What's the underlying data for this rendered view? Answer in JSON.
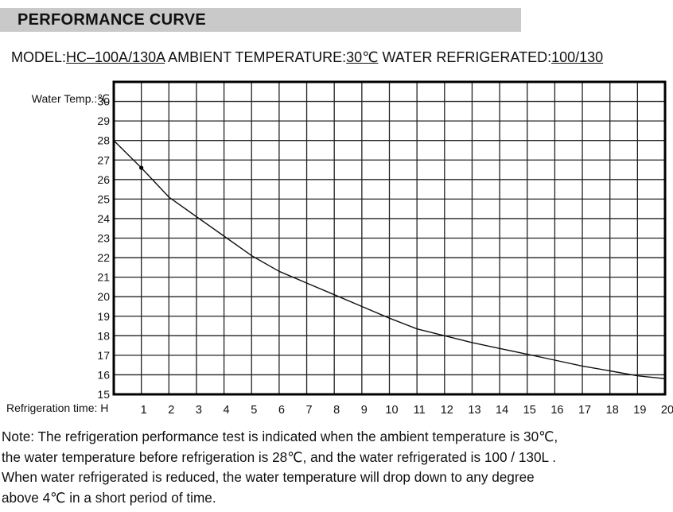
{
  "header": {
    "title": "PERFORMANCE CURVE"
  },
  "info": {
    "model_label": "MODEL:",
    "model_value": "HC–100A/130A",
    "ambient_label": "AMBIENT TEMPERATURE:",
    "ambient_value": "30℃",
    "water_label": "WATER REFRIGERATED:",
    "water_value": "100/130"
  },
  "chart_data": {
    "type": "line",
    "ylabel": "Water Temp.:℃",
    "xlabel": "Refrigeration time: H",
    "ylim": [
      15,
      31
    ],
    "xlim": [
      0,
      20
    ],
    "y_ticks": [
      30,
      29,
      28,
      27,
      26,
      25,
      24,
      23,
      22,
      21,
      20,
      19,
      18,
      17,
      16,
      15
    ],
    "x_ticks": [
      1,
      2,
      3,
      4,
      5,
      6,
      7,
      8,
      9,
      10,
      11,
      12,
      13,
      14,
      15,
      16,
      17,
      18,
      19,
      20
    ],
    "grid": true,
    "series": [
      {
        "name": "Water temperature",
        "x": [
          0,
          1,
          2,
          3,
          4,
          5,
          6,
          7,
          8,
          9,
          10,
          11,
          12,
          13,
          14,
          15,
          16,
          17,
          18,
          19,
          20
        ],
        "values": [
          28,
          26.6,
          25.1,
          24.1,
          23.1,
          22.1,
          21.3,
          20.7,
          20.1,
          19.5,
          18.9,
          18.35,
          18.0,
          17.65,
          17.35,
          17.05,
          16.75,
          16.45,
          16.2,
          15.95,
          15.8
        ]
      }
    ],
    "marker": {
      "x": 1,
      "y": 26.6
    }
  },
  "note": {
    "lines": [
      "Note: The refrigeration performance test is indicated when the ambient temperature is 30℃,",
      "the water temperature before refrigeration is 28℃, and the water refrigerated is 100 / 130L .",
      "When water refrigerated is reduced, the water temperature will drop down to any degree",
      "above 4℃ in a short  period of time."
    ]
  },
  "colors": {
    "title_bg": "#c9c9c9",
    "grid": "#222222",
    "line": "#111111"
  }
}
